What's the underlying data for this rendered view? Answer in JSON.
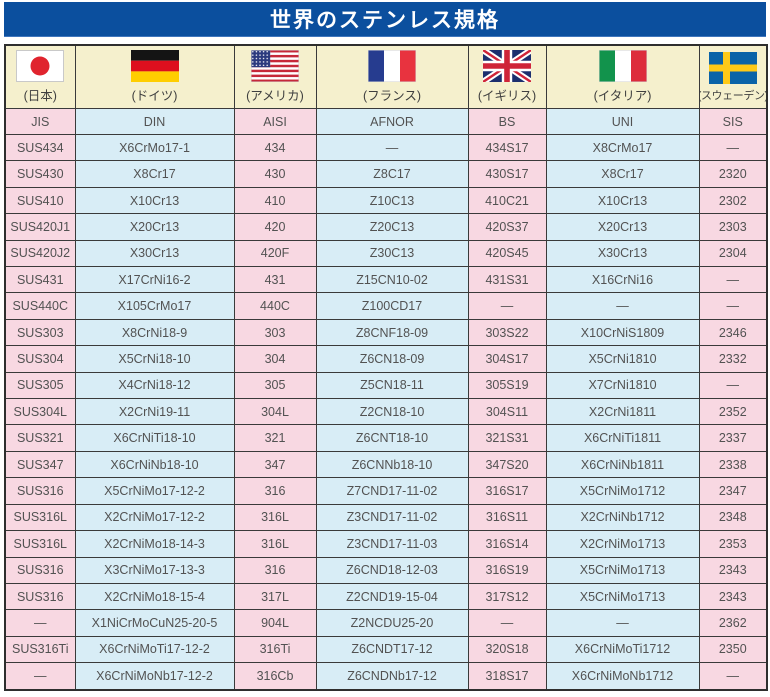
{
  "title": "世界のステンレス規格",
  "colors": {
    "banner_blue": "#0b4f9e",
    "flag_row_cream": "#f5f0cd",
    "column_pink": "#f8d8e2",
    "column_blue": "#d8edf6",
    "border_dark": "#3a3a3a",
    "text_gray": "#525252"
  },
  "header": {
    "countries": [
      {
        "label": "(日本)",
        "flag": "japan-flag-icon"
      },
      {
        "label": "(ドイツ)",
        "flag": "germany-flag-icon"
      },
      {
        "label": "(アメリカ)",
        "flag": "usa-flag-icon"
      },
      {
        "label": "(フランス)",
        "flag": "france-flag-icon"
      },
      {
        "label": "(イギリス)",
        "flag": "uk-flag-icon"
      },
      {
        "label": "(イタリア)",
        "flag": "italy-flag-icon"
      },
      {
        "label": "(スウェーデン)",
        "flag": "sweden-flag-icon"
      }
    ],
    "standards": [
      "JIS",
      "DIN",
      "AISI",
      "AFNOR",
      "BS",
      "UNI",
      "SIS"
    ]
  },
  "rows": [
    [
      "SUS434",
      "X6CrMo17-1",
      "434",
      "—",
      "434S17",
      "X8CrMo17",
      "—"
    ],
    [
      "SUS430",
      "X8Cr17",
      "430",
      "Z8C17",
      "430S17",
      "X8Cr17",
      "2320"
    ],
    [
      "SUS410",
      "X10Cr13",
      "410",
      "Z10C13",
      "410C21",
      "X10Cr13",
      "2302"
    ],
    [
      "SUS420J1",
      "X20Cr13",
      "420",
      "Z20C13",
      "420S37",
      "X20Cr13",
      "2303"
    ],
    [
      "SUS420J2",
      "X30Cr13",
      "420F",
      "Z30C13",
      "420S45",
      "X30Cr13",
      "2304"
    ],
    [
      "SUS431",
      "X17CrNi16-2",
      "431",
      "Z15CN10-02",
      "431S31",
      "X16CrNi16",
      "—"
    ],
    [
      "SUS440C",
      "X105CrMo17",
      "440C",
      "Z100CD17",
      "—",
      "—",
      "—"
    ],
    [
      "SUS303",
      "X8CrNi18-9",
      "303",
      "Z8CNF18-09",
      "303S22",
      "X10CrNiS1809",
      "2346"
    ],
    [
      "SUS304",
      "X5CrNi18-10",
      "304",
      "Z6CN18-09",
      "304S17",
      "X5CrNi1810",
      "2332"
    ],
    [
      "SUS305",
      "X4CrNi18-12",
      "305",
      "Z5CN18-11",
      "305S19",
      "X7CrNi1810",
      "—"
    ],
    [
      "SUS304L",
      "X2CrNi19-11",
      "304L",
      "Z2CN18-10",
      "304S11",
      "X2CrNi1811",
      "2352"
    ],
    [
      "SUS321",
      "X6CrNiTi18-10",
      "321",
      "Z6CNT18-10",
      "321S31",
      "X6CrNiTi1811",
      "2337"
    ],
    [
      "SUS347",
      "X6CrNiNb18-10",
      "347",
      "Z6CNNb18-10",
      "347S20",
      "X6CrNiNb1811",
      "2338"
    ],
    [
      "SUS316",
      "X5CrNiMo17-12-2",
      "316",
      "Z7CND17-11-02",
      "316S17",
      "X5CrNiMo1712",
      "2347"
    ],
    [
      "SUS316L",
      "X2CrNiMo17-12-2",
      "316L",
      "Z3CND17-11-02",
      "316S11",
      "X2CrNiNb1712",
      "2348"
    ],
    [
      "SUS316L",
      "X2CrNiMo18-14-3",
      "316L",
      "Z3CND17-11-03",
      "316S14",
      "X2CrNiMo1713",
      "2353"
    ],
    [
      "SUS316",
      "X3CrNiMo17-13-3",
      "316",
      "Z6CND18-12-03",
      "316S19",
      "X5CrNiMo1713",
      "2343"
    ],
    [
      "SUS316",
      "X2CrNiMo18-15-4",
      "317L",
      "Z2CND19-15-04",
      "317S12",
      "X5CrNiMo1713",
      "2343"
    ],
    [
      "—",
      "X1NiCrMoCuN25-20-5",
      "904L",
      "Z2NCDU25-20",
      "—",
      "—",
      "2362"
    ],
    [
      "SUS316Ti",
      "X6CrNiMoTi17-12-2",
      "316Ti",
      "Z6CNDT17-12",
      "320S18",
      "X6CrNiMoTi1712",
      "2350"
    ],
    [
      "—",
      "X6CrNiMoNb17-12-2",
      "316Cb",
      "Z6CNDNb17-12",
      "318S17",
      "X6CrNiMoNb1712",
      "—"
    ]
  ]
}
